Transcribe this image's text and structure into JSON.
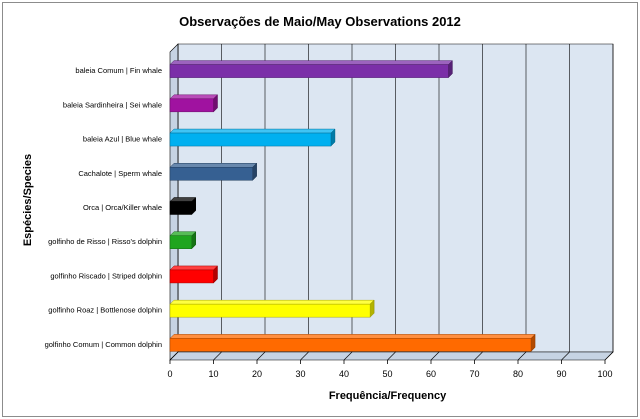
{
  "chart_data": {
    "type": "bar",
    "orientation": "horizontal",
    "title": "Observações de Maio/May Observations 2012",
    "xlabel": "Frequência/Frequency",
    "ylabel": "Espécies/Species",
    "xlim": [
      0,
      100
    ],
    "xticks": [
      0,
      10,
      20,
      30,
      40,
      50,
      60,
      70,
      80,
      90,
      100
    ],
    "grid": true,
    "categories": [
      "baleia Comum | Fin whale",
      "baleia Sardinheira | Sei whale",
      "baleia Azul | Blue whale",
      "Cachalote | Sperm whale",
      "Orca | Orca/Killer whale",
      "golfinho de Risso | Risso's dolphin",
      "golfinho Riscado | Striped dolphin",
      "golfinho Roaz | Bottlenose dolphin",
      "golfinho Comum | Common dolphin"
    ],
    "values": [
      64,
      10,
      37,
      19,
      5,
      5,
      10,
      46,
      83
    ],
    "colors": [
      "#7b2fa8",
      "#a012a0",
      "#00b0f0",
      "#366092",
      "#000000",
      "#1fa51f",
      "#ff0000",
      "#ffff00",
      "#ff6a00"
    ]
  }
}
